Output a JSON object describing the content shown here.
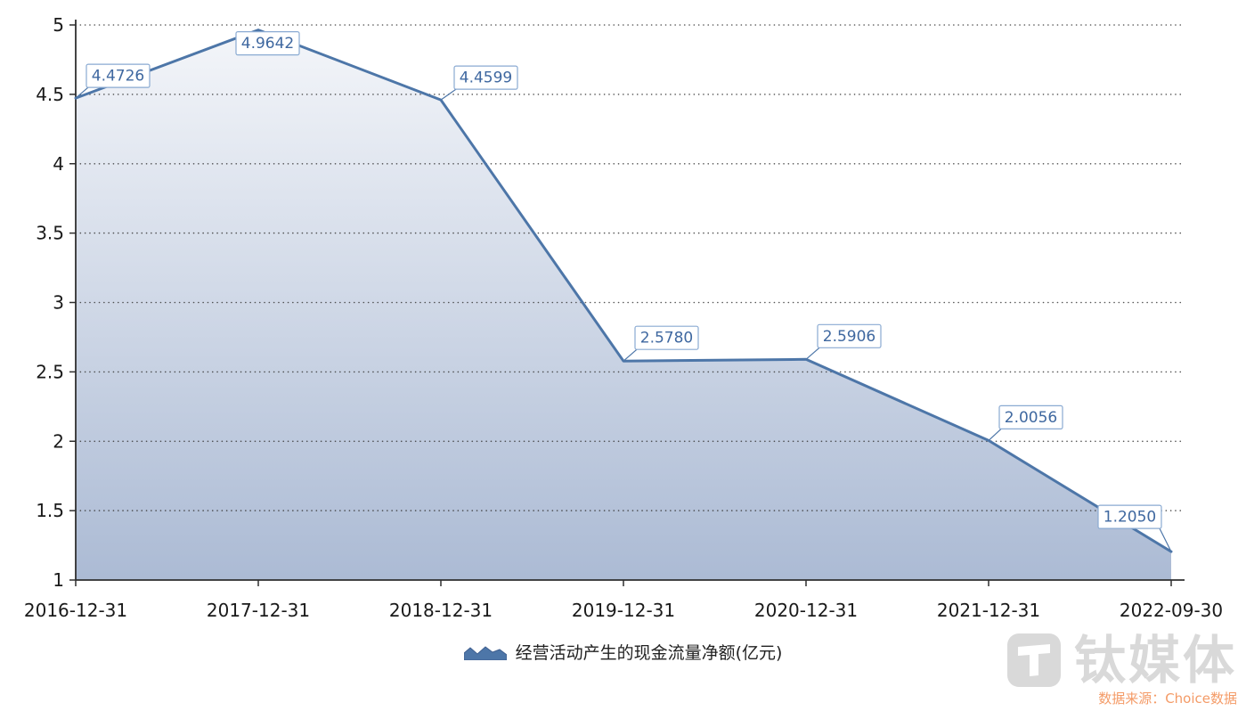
{
  "chart_data": {
    "type": "area",
    "title": "",
    "categories": [
      "2016-12-31",
      "2017-12-31",
      "2018-12-31",
      "2019-12-31",
      "2020-12-31",
      "2021-12-31",
      "2022-09-30"
    ],
    "series": [
      {
        "name": "经营活动产生的现金流量净额(亿元)",
        "values": [
          4.4726,
          4.9642,
          4.4599,
          2.578,
          2.5906,
          2.0056,
          1.205
        ],
        "point_labels": [
          "4.4726",
          "4.9642",
          "4.4599",
          "2.5780",
          "2.5906",
          "2.0056",
          "1.2050"
        ]
      }
    ],
    "ylim": [
      1,
      5
    ],
    "yticks": [
      1,
      1.5,
      2,
      2.5,
      3,
      3.5,
      4,
      4.5,
      5
    ],
    "grid": "dotted-horizontal",
    "legend_position": "bottom-center",
    "colors": {
      "line": "#4d76a8",
      "area_top": "#f3f5f9",
      "area_bottom": "#a7b7d2",
      "label_box_border": "#8aaad2",
      "label_text": "#3f68a0",
      "axis": "#2f2f2f",
      "grid": "#3a3a3a",
      "tick_label": "#1a1a1a"
    }
  },
  "watermark": {
    "brand": "钛媒体",
    "source": "数据来源：Choice数据"
  }
}
